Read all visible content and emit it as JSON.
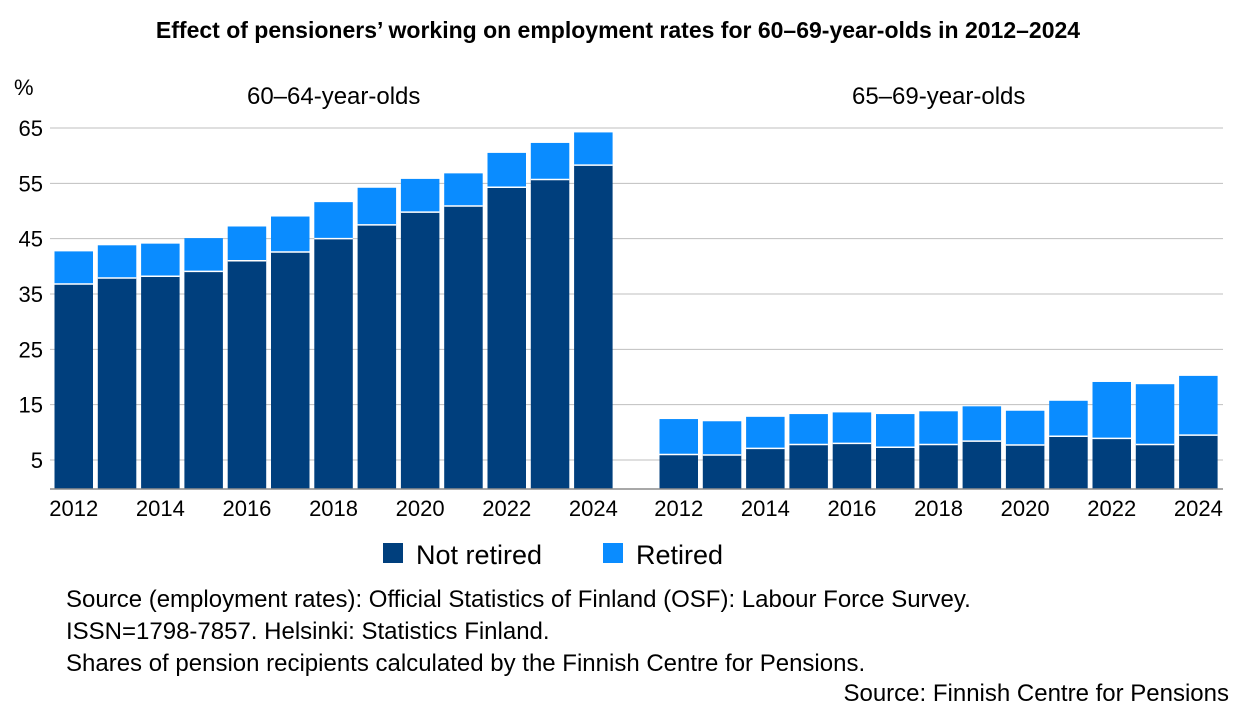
{
  "chart_data": {
    "type": "bar",
    "stacked": true,
    "title": "Effect of pensioners’ working on employment rates for 60–69-year-olds in 2012–2024",
    "ylabel": "%",
    "ylim": [
      -3,
      65
    ],
    "yticks": [
      5,
      15,
      25,
      35,
      45,
      55,
      65
    ],
    "grid": true,
    "legend_position": "bottom",
    "colors": {
      "not_retired": "#003F7D",
      "retired": "#0A8CFF",
      "grid": "#BFBFBF",
      "axis": "#8C8C8C"
    },
    "series_names": [
      "Not retired",
      "Retired"
    ],
    "panels": [
      {
        "label": "60–64-year-olds",
        "years": [
          "2012",
          "2013",
          "2014",
          "2015",
          "2016",
          "2017",
          "2018",
          "2019",
          "2020",
          "2021",
          "2022",
          "2023",
          "2024"
        ],
        "xtick_labels": [
          "2012",
          "",
          "2014",
          "",
          "2016",
          "",
          "2018",
          "",
          "2020",
          "",
          "2022",
          "",
          "2024"
        ],
        "not_retired": [
          36.8,
          37.9,
          38.2,
          39.1,
          41.0,
          42.6,
          45.0,
          47.5,
          49.8,
          50.9,
          54.3,
          55.7,
          58.3
        ],
        "retired": [
          5.9,
          5.9,
          5.9,
          6.0,
          6.2,
          6.4,
          6.6,
          6.7,
          6.0,
          5.9,
          6.2,
          6.6,
          5.9
        ]
      },
      {
        "label": "65–69-year-olds",
        "years": [
          "2012",
          "2013",
          "2014",
          "2015",
          "2016",
          "2017",
          "2018",
          "2019",
          "2020",
          "2021",
          "2022",
          "2023",
          "2024"
        ],
        "xtick_labels": [
          "2012",
          "",
          "2014",
          "",
          "2016",
          "",
          "2018",
          "",
          "2020",
          "",
          "2022",
          "",
          "2024"
        ],
        "not_retired": [
          6.0,
          5.9,
          7.1,
          7.8,
          8.0,
          7.3,
          7.8,
          8.4,
          7.7,
          9.3,
          8.9,
          7.8,
          9.5
        ],
        "retired": [
          6.4,
          6.1,
          5.7,
          5.5,
          5.6,
          6.0,
          6.0,
          6.3,
          6.2,
          6.4,
          10.2,
          10.9,
          10.7
        ]
      }
    ]
  },
  "legend": {
    "not_retired_label": "Not retired",
    "retired_label": "Retired"
  },
  "footnote": {
    "line1": "Source (employment rates): Official Statistics of Finland (OSF): Labour Force Survey.",
    "line2": "ISSN=1798-7857. Helsinki: Statistics Finland.",
    "line3": "Shares of pension recipients calculated by the Finnish Centre for Pensions."
  },
  "source": "Source: Finnish Centre for Pensions"
}
